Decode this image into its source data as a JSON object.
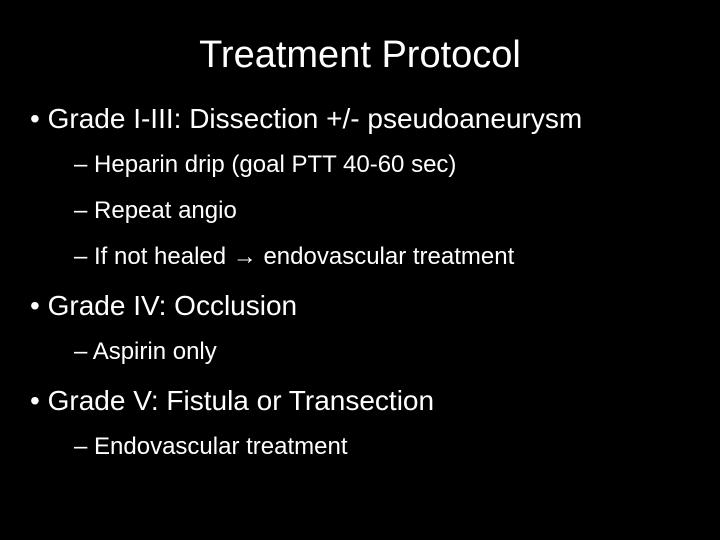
{
  "title": "Treatment Protocol",
  "bullets": [
    {
      "text": "Grade I-III: Dissection +/- pseudoaneurysm",
      "sub": [
        {
          "text": "Heparin drip (goal PTT 40-60 sec)"
        },
        {
          "text": "Repeat angio"
        },
        {
          "text": "If not healed → endovascular treatment"
        }
      ]
    },
    {
      "text": "Grade IV: Occlusion",
      "sub": [
        {
          "text": "Aspirin only"
        }
      ]
    },
    {
      "text": "Grade V: Fistula or Transection",
      "sub": [
        {
          "text": "Endovascular treatment"
        }
      ]
    }
  ],
  "colors": {
    "background": "#000000",
    "text": "#ffffff"
  },
  "fonts": {
    "title_size": 38,
    "lvl1_size": 28,
    "lvl2_size": 24,
    "family": "Arial"
  }
}
